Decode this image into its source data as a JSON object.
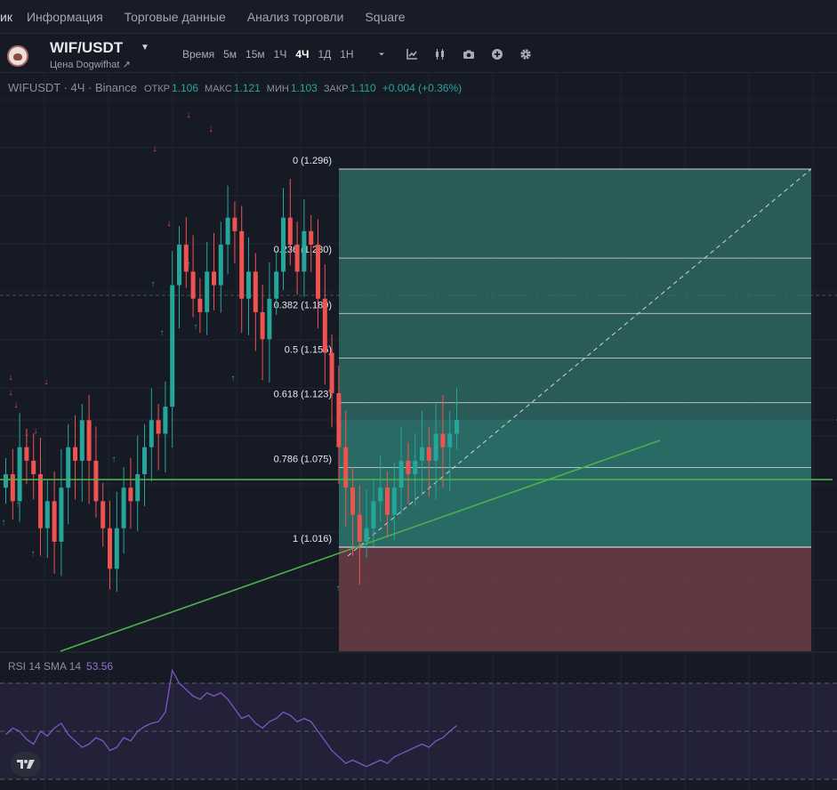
{
  "nav": {
    "tabs": [
      {
        "label": "ик"
      },
      {
        "label": "Информация"
      },
      {
        "label": "Торговые данные"
      },
      {
        "label": "Анализ торговли"
      },
      {
        "label": "Square"
      }
    ]
  },
  "header": {
    "symbol": "WIF/USDT",
    "subtitle": "Цена Dogwifhat ↗",
    "toolbar": {
      "time_label": "Время",
      "timeframes": [
        {
          "label": "5м",
          "active": false
        },
        {
          "label": "15м",
          "active": false
        },
        {
          "label": "1Ч",
          "active": false
        },
        {
          "label": "4Ч",
          "active": true
        },
        {
          "label": "1Д",
          "active": false
        },
        {
          "label": "1Н",
          "active": false
        }
      ],
      "icons": [
        "chevron-down-icon",
        "indicator-icon",
        "candle-type-icon",
        "camera-icon",
        "plus-circle-icon",
        "gear-icon"
      ]
    }
  },
  "legend": {
    "symbol_line": "WIFUSDT · 4Ч · Binance",
    "open_label": "ОТКР",
    "open": "1.106",
    "high_label": "МАКС",
    "high": "1.121",
    "low_label": "МИН",
    "low": "1.103",
    "close_label": "ЗАКР",
    "close": "1.110",
    "change": "+0.004 (+0.36%)"
  },
  "colors": {
    "background": "#161a25",
    "up": "#26a69a",
    "down": "#ef5350",
    "trendline": "#4caf50",
    "target_zone": "#2f6f68",
    "stop_zone": "#6b3c46",
    "rsi_line": "#7e57c2"
  },
  "chart_data": {
    "type": "candlestick",
    "price_range": [
      0.92,
      1.34
    ],
    "fib_levels": [
      {
        "label": "0 (1.296)",
        "ratio": 0,
        "price": 1.296
      },
      {
        "label": "0.236 (1.230)",
        "ratio": 0.236,
        "price": 1.23
      },
      {
        "label": "0.382 (1.189)",
        "ratio": 0.382,
        "price": 1.189
      },
      {
        "label": "0.5 (1.156)",
        "ratio": 0.5,
        "price": 1.156
      },
      {
        "label": "0.618 (1.123)",
        "ratio": 0.618,
        "price": 1.123
      },
      {
        "label": "0.786 (1.075)",
        "ratio": 0.786,
        "price": 1.075
      },
      {
        "label": "1 (1.016)",
        "ratio": 1,
        "price": 1.016
      }
    ],
    "horizontal_support": 1.066,
    "candles_close": [
      1.07,
      1.05,
      1.09,
      1.08,
      1.07,
      1.03,
      1.05,
      1.02,
      1.06,
      1.09,
      1.08,
      1.11,
      1.08,
      1.05,
      1.03,
      1.0,
      1.03,
      1.06,
      1.05,
      1.07,
      1.09,
      1.11,
      1.1,
      1.12,
      1.21,
      1.24,
      1.22,
      1.2,
      1.19,
      1.22,
      1.21,
      1.24,
      1.26,
      1.25,
      1.2,
      1.22,
      1.19,
      1.17,
      1.2,
      1.22,
      1.26,
      1.24,
      1.22,
      1.25,
      1.24,
      1.2,
      1.16,
      1.13,
      1.09,
      1.06,
      1.04,
      1.02,
      1.03,
      1.05,
      1.06,
      1.04,
      1.06,
      1.08,
      1.07,
      1.08,
      1.09,
      1.08,
      1.1,
      1.09,
      1.1,
      1.11
    ],
    "rsi": {
      "label": "RSI 14 SMA 14",
      "value": "53.56"
    }
  },
  "rsi_label": "RSI 14 SMA 14",
  "rsi_value": "53.56"
}
